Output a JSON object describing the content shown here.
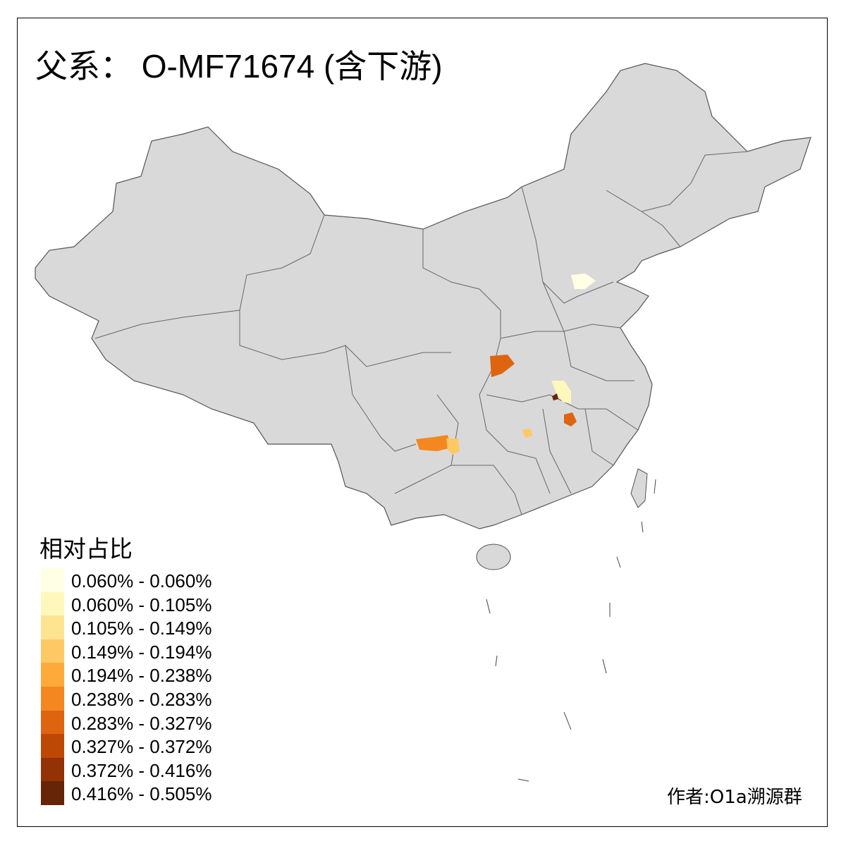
{
  "title": "父系： O-MF71674 (含下游)",
  "legend": {
    "title": "相对占比",
    "items": [
      {
        "label": "0.060% - 0.060%",
        "color": "#ffffe5"
      },
      {
        "label": "0.060% - 0.105%",
        "color": "#fff7bc"
      },
      {
        "label": "0.105% - 0.149%",
        "color": "#fee391"
      },
      {
        "label": "0.149% - 0.194%",
        "color": "#fec965"
      },
      {
        "label": "0.194% - 0.238%",
        "color": "#feaa3a"
      },
      {
        "label": "0.238% - 0.283%",
        "color": "#f4871f"
      },
      {
        "label": "0.283% - 0.327%",
        "color": "#df6410"
      },
      {
        "label": "0.327% - 0.372%",
        "color": "#bd4705"
      },
      {
        "label": "0.372% - 0.416%",
        "color": "#933204"
      },
      {
        "label": "0.416% - 0.505%",
        "color": "#662506"
      }
    ]
  },
  "map": {
    "base_color": "#d9d9d9",
    "border_color": "#555555"
  },
  "credit": "作者:O1a溯源群"
}
